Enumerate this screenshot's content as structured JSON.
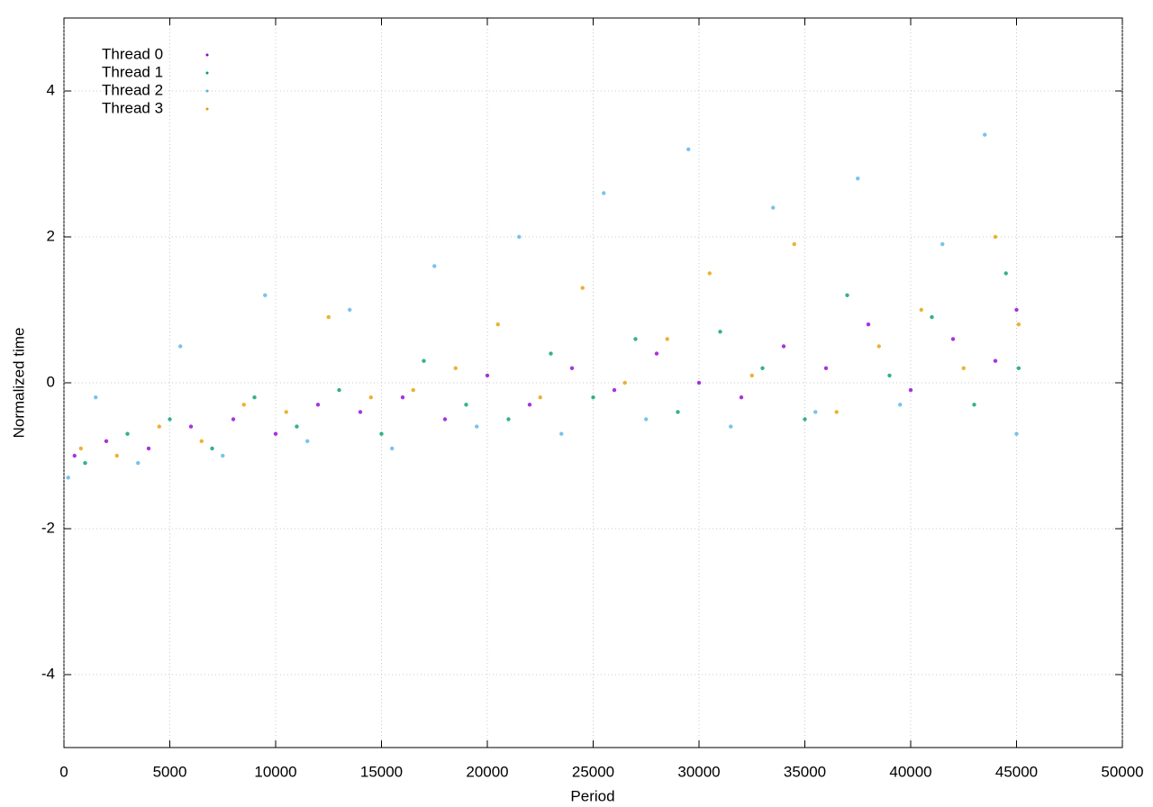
{
  "chart_data": {
    "type": "scatter",
    "xlabel": "Period",
    "ylabel": "Normalized time",
    "xlim": [
      0,
      50000
    ],
    "xticks": [
      0,
      5000,
      10000,
      15000,
      20000,
      25000,
      30000,
      35000,
      40000,
      45000,
      50000
    ],
    "ylim": [
      -5,
      5
    ],
    "yticks": [
      -4,
      -2,
      0,
      2,
      4
    ],
    "grid": true,
    "legend": "top-left",
    "series": [
      {
        "name": "Thread 0",
        "color": "#9400d3",
        "x": [
          500,
          2000,
          4000,
          6000,
          8000,
          10000,
          12000,
          14000,
          16000,
          18000,
          20000,
          22000,
          24000,
          26000,
          28000,
          30000,
          32000,
          34000,
          36000,
          38000,
          40000,
          42000,
          44000,
          45000
        ],
        "values": [
          -1.0,
          -0.8,
          -0.9,
          -0.6,
          -0.5,
          -0.7,
          -0.3,
          -0.4,
          -0.2,
          -0.5,
          0.1,
          -0.3,
          0.2,
          -0.1,
          0.4,
          0.0,
          -0.2,
          0.5,
          0.2,
          0.8,
          -0.1,
          0.6,
          0.3,
          1.0
        ]
      },
      {
        "name": "Thread 1",
        "color": "#009e73",
        "x": [
          1000,
          3000,
          5000,
          7000,
          9000,
          11000,
          13000,
          15000,
          17000,
          19000,
          21000,
          23000,
          25000,
          27000,
          29000,
          31000,
          33000,
          35000,
          37000,
          39000,
          41000,
          43000,
          44500,
          45100
        ],
        "values": [
          -1.1,
          -0.7,
          -0.5,
          -0.9,
          -0.2,
          -0.6,
          -0.1,
          -0.7,
          0.3,
          -0.3,
          -0.5,
          0.4,
          -0.2,
          0.6,
          -0.4,
          0.7,
          0.2,
          -0.5,
          1.2,
          0.1,
          0.9,
          -0.3,
          1.5,
          0.2
        ]
      },
      {
        "name": "Thread 2",
        "color": "#56b4e9",
        "x": [
          200,
          1500,
          3500,
          5500,
          7500,
          9500,
          11500,
          13500,
          15500,
          17500,
          19500,
          21500,
          23500,
          25500,
          27500,
          29500,
          31500,
          33500,
          35500,
          37500,
          39500,
          41500,
          43500,
          45000
        ],
        "values": [
          -1.3,
          -0.2,
          -1.1,
          0.5,
          -1.0,
          1.2,
          -0.8,
          1.0,
          -0.9,
          1.6,
          -0.6,
          2.0,
          -0.7,
          2.6,
          -0.5,
          3.2,
          -0.6,
          2.4,
          -0.4,
          2.8,
          -0.3,
          1.9,
          3.4,
          -0.7
        ]
      },
      {
        "name": "Thread 3",
        "color": "#e69f00",
        "x": [
          800,
          2500,
          4500,
          6500,
          8500,
          10500,
          12500,
          14500,
          16500,
          18500,
          20500,
          22500,
          24500,
          26500,
          28500,
          30500,
          32500,
          34500,
          36500,
          38500,
          40500,
          42500,
          44000,
          45100
        ],
        "values": [
          -0.9,
          -1.0,
          -0.6,
          -0.8,
          -0.3,
          -0.4,
          0.9,
          -0.2,
          -0.1,
          0.2,
          0.8,
          -0.2,
          1.3,
          0.0,
          0.6,
          1.5,
          0.1,
          1.9,
          -0.4,
          0.5,
          1.0,
          0.2,
          2.0,
          0.8
        ]
      }
    ]
  }
}
